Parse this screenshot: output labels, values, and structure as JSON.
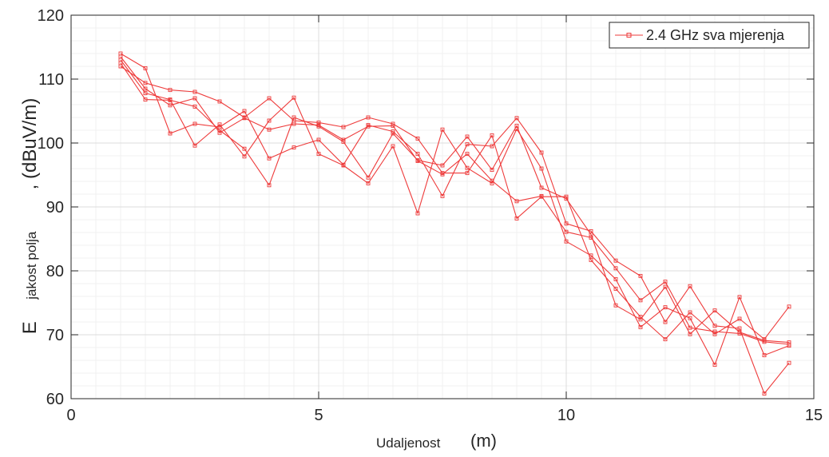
{
  "chart_data": {
    "type": "line",
    "xlim": [
      0,
      15
    ],
    "ylim": [
      60,
      120
    ],
    "xticks": [
      0,
      5,
      10,
      15
    ],
    "yticks": [
      60,
      70,
      80,
      90,
      100,
      110,
      120
    ],
    "grid": true,
    "minor_grid": true,
    "legend": {
      "label": "2.4 GHz sva mjerenja",
      "placement": "top-right",
      "marker": "square"
    },
    "xlabel": {
      "small": "Udaljenost",
      "main": "(m)"
    },
    "ylabel": {
      "main": "E",
      "small": "jakost polja",
      "unit": ", (dBuV/m)"
    },
    "color": "#ee3b3b",
    "x": [
      1,
      1.5,
      2,
      2.5,
      3,
      3.5,
      4,
      4.5,
      5,
      5.5,
      6,
      6.5,
      7,
      7.5,
      8,
      8.5,
      9,
      9.5,
      10,
      10.5,
      11,
      11.5,
      12,
      12.5,
      13,
      13.5,
      14,
      14.5
    ],
    "series": [
      {
        "values": [
          114,
          111.7,
          101.5,
          103,
          102.5,
          105,
          97.6,
          99.3,
          100.5,
          96.6,
          102.8,
          101.8,
          98.3,
          91.7,
          99.8,
          99.5,
          103.9,
          98.5,
          87.4,
          86.2,
          81.6,
          79.2,
          72,
          77.6,
          71.4,
          71,
          60.8,
          65.6
        ]
      },
      {
        "values": [
          112,
          109.4,
          108.3,
          108,
          106.5,
          104,
          107,
          103.5,
          103.2,
          102.5,
          104,
          103,
          100.7,
          95.3,
          95.3,
          101.2,
          88.2,
          91.6,
          91.6,
          81.7,
          77.2,
          72.8,
          69.3,
          73.5,
          70.1,
          72.5,
          69.3,
          74.4
        ]
      },
      {
        "values": [
          113,
          107.8,
          106.8,
          99.6,
          102.9,
          97.9,
          103.5,
          107.1,
          98.3,
          96.5,
          93.7,
          99.5,
          89,
          102.1,
          96.1,
          93.7,
          102.2,
          96,
          84.6,
          82.4,
          78.7,
          71.2,
          74.3,
          72.6,
          65.3,
          75.9,
          66.8,
          68.3
        ]
      },
      {
        "values": [
          112.5,
          106.8,
          106.7,
          105.7,
          102,
          99.1,
          93.4,
          104,
          102.6,
          100.2,
          94.6,
          101.5,
          97.3,
          96.5,
          101,
          95.8,
          102.7,
          93,
          91.3,
          85.7,
          74.6,
          72.4,
          77.5,
          70.1,
          73.8,
          70.4,
          69.1,
          68.8
        ]
      },
      {
        "values": [
          113.5,
          108.5,
          105.9,
          107,
          101.6,
          103.9,
          102.1,
          103,
          102.8,
          100.5,
          102.6,
          102.7,
          97.2,
          95.1,
          98.3,
          94.1,
          90.9,
          91.7,
          86.1,
          85.2,
          80.4,
          75.4,
          78.3,
          71.1,
          70.5,
          70.2,
          68.9,
          68.5
        ]
      }
    ]
  }
}
